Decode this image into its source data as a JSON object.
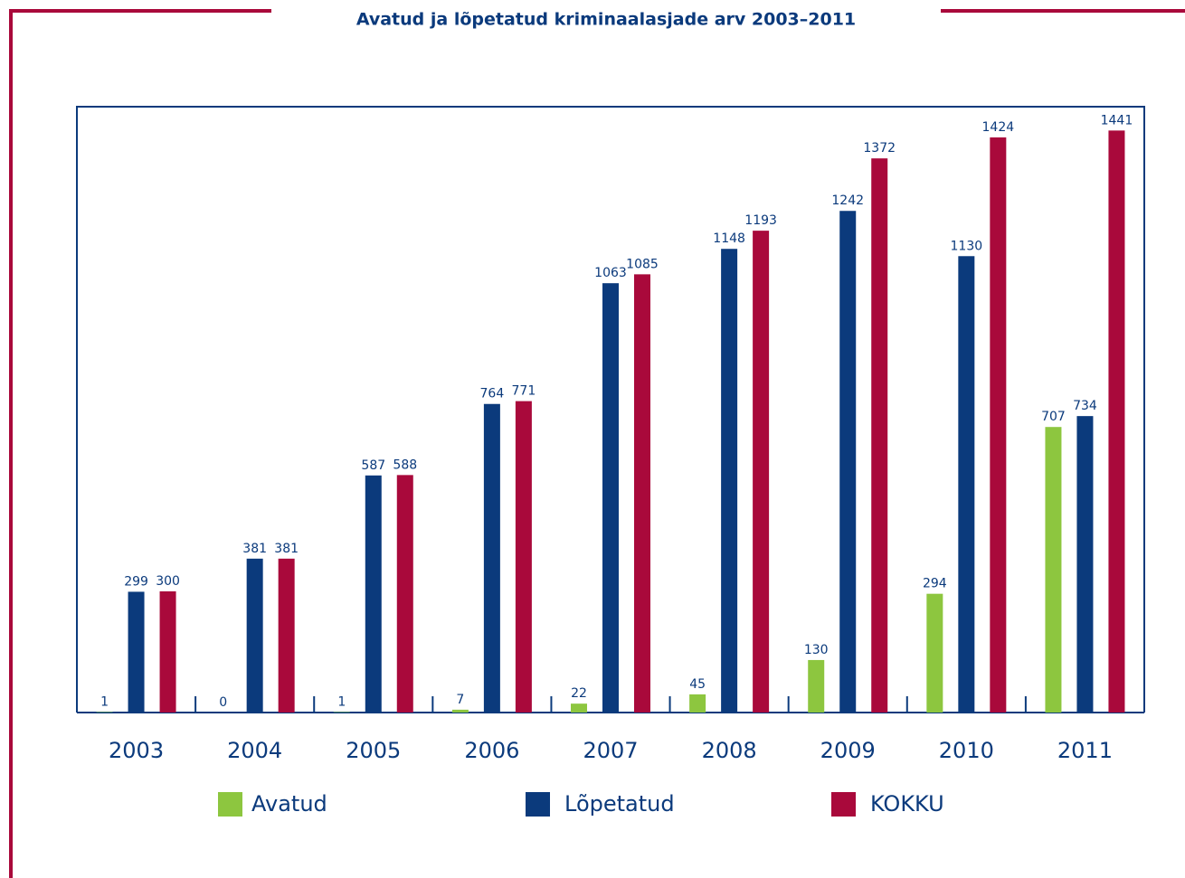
{
  "chart_data": {
    "type": "bar",
    "title": "Avatud ja lõpetatud kriminaalasjade arv 2003–2011",
    "categories": [
      "2003",
      "2004",
      "2005",
      "2006",
      "2007",
      "2008",
      "2009",
      "2010",
      "2011"
    ],
    "series": [
      {
        "name": "Avatud",
        "color": "#8dc63f",
        "values": [
          1,
          0,
          1,
          7,
          22,
          45,
          130,
          294,
          707
        ]
      },
      {
        "name": "Lõpetatud",
        "color": "#0b3a7c",
        "values": [
          299,
          381,
          587,
          764,
          1063,
          1148,
          1242,
          1130,
          734
        ]
      },
      {
        "name": "KOKKU",
        "color": "#a9093b",
        "values": [
          300,
          381,
          588,
          771,
          1085,
          1193,
          1372,
          1424,
          1441
        ]
      }
    ],
    "ylim": [
      0,
      1500
    ],
    "legend": "bottom"
  }
}
